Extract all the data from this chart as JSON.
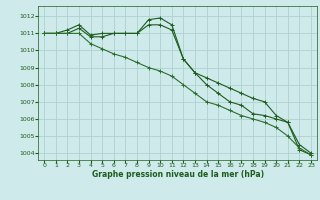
{
  "title": "Graphe pression niveau de la mer (hPa)",
  "bg_color": "#ceeaea",
  "grid_color": "#aed0d0",
  "line_color_dark": "#1e5c1e",
  "line_color_mid": "#2d6e2d",
  "xlim_min": -0.5,
  "xlim_max": 23.5,
  "ylim_min": 1003.6,
  "ylim_max": 1012.6,
  "yticks": [
    1004,
    1005,
    1006,
    1007,
    1008,
    1009,
    1010,
    1011,
    1012
  ],
  "xticks": [
    0,
    1,
    2,
    3,
    4,
    5,
    6,
    7,
    8,
    9,
    10,
    11,
    12,
    13,
    14,
    15,
    16,
    17,
    18,
    19,
    20,
    21,
    22,
    23
  ],
  "series1": [
    1011.0,
    1011.0,
    1011.0,
    1011.3,
    1010.8,
    1010.8,
    1011.0,
    1011.0,
    1011.0,
    1011.5,
    1011.5,
    1011.2,
    1009.5,
    1008.7,
    1008.0,
    1007.5,
    1007.0,
    1006.8,
    1006.3,
    1006.2,
    1006.0,
    1005.8,
    1004.2,
    1003.9
  ],
  "series2": [
    1011.0,
    1011.0,
    1011.2,
    1011.5,
    1010.9,
    1011.0,
    1011.0,
    1011.0,
    1011.0,
    1011.8,
    1011.9,
    1011.5,
    1009.5,
    1008.7,
    1008.4,
    1008.1,
    1007.8,
    1007.5,
    1007.2,
    1007.0,
    1006.2,
    1005.8,
    1004.5,
    1004.0
  ],
  "series3": [
    1011.0,
    1011.0,
    1011.0,
    1011.0,
    1010.4,
    1010.1,
    1009.8,
    1009.6,
    1009.3,
    1009.0,
    1008.8,
    1008.5,
    1008.0,
    1007.5,
    1007.0,
    1006.8,
    1006.5,
    1006.2,
    1006.0,
    1005.8,
    1005.5,
    1005.0,
    1004.3,
    1003.9
  ]
}
